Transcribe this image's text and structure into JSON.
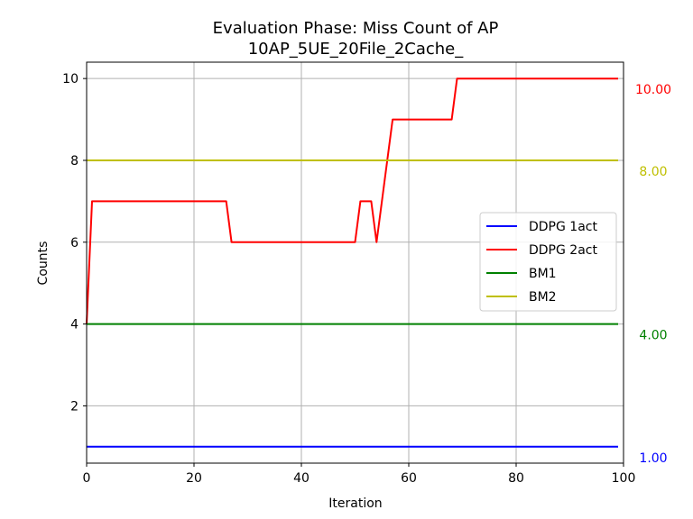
{
  "chart_data": {
    "type": "line",
    "title": [
      "Evaluation Phase: Miss Count of AP",
      "10AP_5UE_20File_2Cache_"
    ],
    "xlabel": "Iteration",
    "ylabel": "Counts",
    "xlim": [
      0,
      100
    ],
    "ylim": [
      0.6,
      10.4
    ],
    "xticks": [
      0,
      20,
      40,
      60,
      80,
      100
    ],
    "yticks": [
      2,
      4,
      6,
      8,
      10
    ],
    "grid": true,
    "legend_position": "center-right",
    "series": [
      {
        "name": "DDPG 1act",
        "color": "#0000ff",
        "points": [
          [
            0,
            1
          ],
          [
            99,
            1
          ]
        ],
        "end_label": "1.00"
      },
      {
        "name": "DDPG 2act",
        "color": "#ff0000",
        "points": [
          [
            0,
            4
          ],
          [
            1,
            7
          ],
          [
            26,
            7
          ],
          [
            27,
            6
          ],
          [
            50,
            6
          ],
          [
            51,
            7
          ],
          [
            53,
            7
          ],
          [
            54,
            6
          ],
          [
            57,
            9
          ],
          [
            68,
            9
          ],
          [
            69,
            10
          ],
          [
            99,
            10
          ]
        ],
        "end_label": "10.00"
      },
      {
        "name": "BM1",
        "color": "#008000",
        "points": [
          [
            0,
            4
          ],
          [
            99,
            4
          ]
        ],
        "end_label": "4.00"
      },
      {
        "name": "BM2",
        "color": "#bfbf00",
        "points": [
          [
            0,
            8
          ],
          [
            99,
            8
          ]
        ],
        "end_label": "8.00"
      }
    ]
  }
}
